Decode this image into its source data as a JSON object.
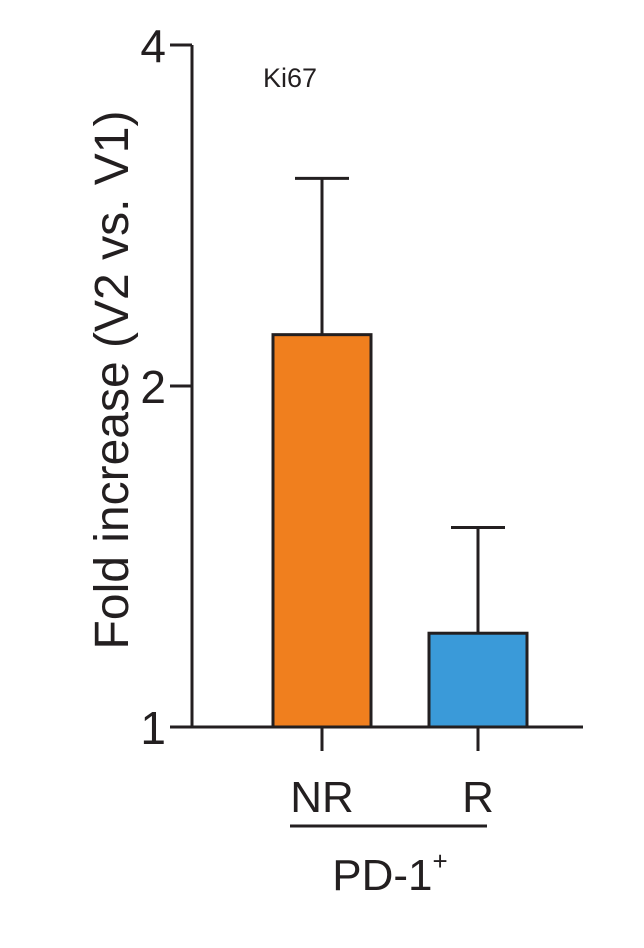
{
  "chart_data": {
    "type": "bar",
    "scale": "log2",
    "ylim": [
      1,
      4
    ],
    "yticks": [
      {
        "value": 1,
        "label": "1"
      },
      {
        "value": 2,
        "label": "2"
      },
      {
        "value": 4,
        "label": "4"
      }
    ],
    "ylabel": "Fold increase (V2 vs. V1)",
    "categories": [
      "NR",
      "R"
    ],
    "group_label": "PD-1",
    "group_label_sup": "+",
    "annotation": "Ki67",
    "bars": [
      {
        "category": "NR",
        "value": 2.22,
        "error_upper": 3.05,
        "color": "#f07f1e"
      },
      {
        "category": "R",
        "value": 1.21,
        "error_upper": 1.5,
        "color": "#3a9ad9"
      }
    ]
  }
}
